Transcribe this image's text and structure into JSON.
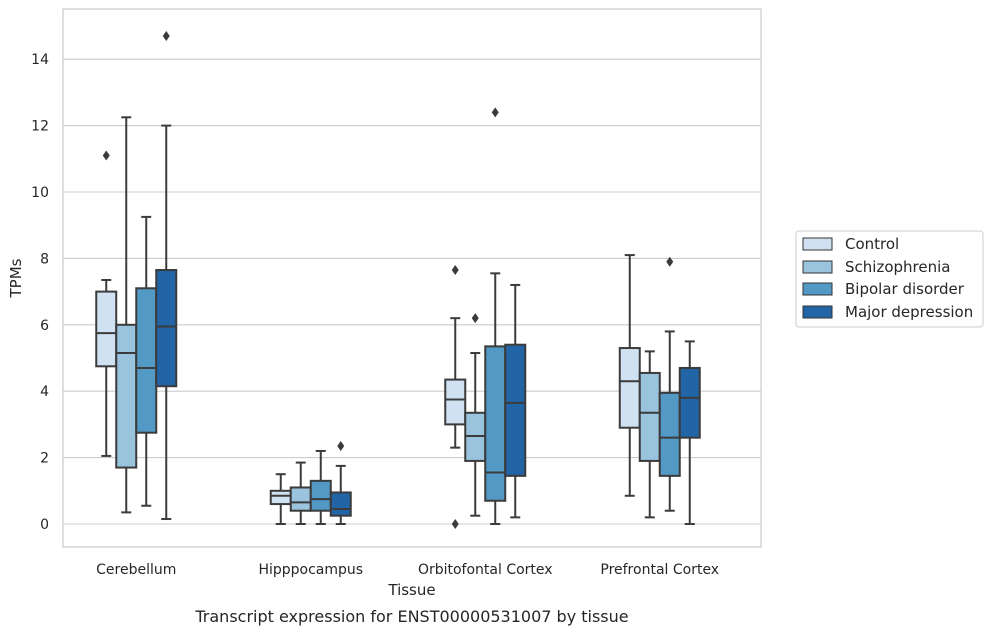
{
  "caption": "Transcript expression for ENST00000531007 by tissue",
  "chart_data": {
    "type": "boxplot",
    "xlabel": "Tissue",
    "ylabel": "TPMs",
    "ylim": [
      -0.7,
      15.5
    ],
    "yticks": [
      0,
      2,
      4,
      6,
      8,
      10,
      12,
      14
    ],
    "grid": true,
    "legend_placement": "right",
    "categories": [
      "Cerebellum",
      "Hipppocampus",
      "Orbitofontal Cortex",
      "Prefrontal Cortex"
    ],
    "series": [
      {
        "name": "Control",
        "color": "#d0e1f2",
        "boxes": [
          {
            "whislo": 2.05,
            "q1": 4.75,
            "med": 5.75,
            "q3": 7.0,
            "whishi": 7.35,
            "fliers": [
              11.1
            ]
          },
          {
            "whislo": 0.0,
            "q1": 0.6,
            "med": 0.85,
            "q3": 1.0,
            "whishi": 1.5,
            "fliers": []
          },
          {
            "whislo": 2.3,
            "q1": 3.0,
            "med": 3.75,
            "q3": 4.35,
            "whishi": 6.2,
            "fliers": [
              7.65,
              0.0
            ]
          },
          {
            "whislo": 0.85,
            "q1": 2.9,
            "med": 4.3,
            "q3": 5.3,
            "whishi": 8.1,
            "fliers": []
          }
        ]
      },
      {
        "name": "Schizophrenia",
        "color": "#9ac3de",
        "boxes": [
          {
            "whislo": 0.35,
            "q1": 1.7,
            "med": 5.15,
            "q3": 6.0,
            "whishi": 12.25,
            "fliers": []
          },
          {
            "whislo": 0.0,
            "q1": 0.4,
            "med": 0.65,
            "q3": 1.1,
            "whishi": 1.85,
            "fliers": []
          },
          {
            "whislo": 0.25,
            "q1": 1.9,
            "med": 2.65,
            "q3": 3.35,
            "whishi": 5.15,
            "fliers": [
              6.2
            ]
          },
          {
            "whislo": 0.2,
            "q1": 1.9,
            "med": 3.35,
            "q3": 4.55,
            "whishi": 5.2,
            "fliers": []
          }
        ]
      },
      {
        "name": "Bipolar disorder",
        "color": "#5399c6",
        "boxes": [
          {
            "whislo": 0.55,
            "q1": 2.75,
            "med": 4.7,
            "q3": 7.1,
            "whishi": 9.25,
            "fliers": []
          },
          {
            "whislo": 0.0,
            "q1": 0.4,
            "med": 0.75,
            "q3": 1.3,
            "whishi": 2.2,
            "fliers": []
          },
          {
            "whislo": 0.0,
            "q1": 0.7,
            "med": 1.55,
            "q3": 5.35,
            "whishi": 7.55,
            "fliers": [
              12.4
            ]
          },
          {
            "whislo": 0.4,
            "q1": 1.45,
            "med": 2.6,
            "q3": 3.95,
            "whishi": 5.8,
            "fliers": [
              7.9
            ]
          }
        ]
      },
      {
        "name": "Major depression",
        "color": "#2165a6",
        "boxes": [
          {
            "whislo": 0.15,
            "q1": 4.15,
            "med": 5.95,
            "q3": 7.65,
            "whishi": 12.0,
            "fliers": [
              14.7
            ]
          },
          {
            "whislo": 0.0,
            "q1": 0.25,
            "med": 0.45,
            "q3": 0.95,
            "whishi": 1.75,
            "fliers": [
              2.35
            ]
          },
          {
            "whislo": 0.2,
            "q1": 1.45,
            "med": 3.65,
            "q3": 5.4,
            "whishi": 7.2,
            "fliers": []
          },
          {
            "whislo": 0.0,
            "q1": 2.6,
            "med": 3.8,
            "q3": 4.7,
            "whishi": 5.5,
            "fliers": []
          }
        ]
      }
    ]
  }
}
